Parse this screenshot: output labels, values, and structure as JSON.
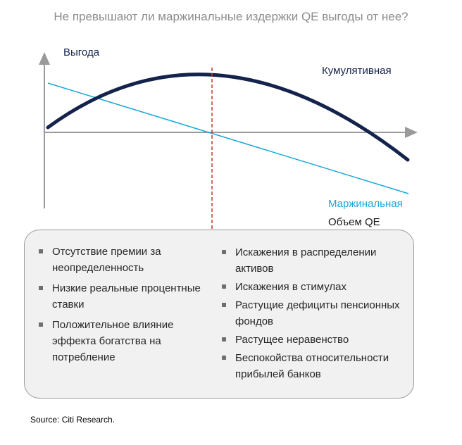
{
  "title": "Не превышают ли маржинальные издержки QE выгоды от нее?",
  "axis_labels": {
    "y": "Выгода",
    "x": "Объем QE"
  },
  "curves": {
    "cumulative": {
      "label": "Кумулятивная",
      "color": "#14234b"
    },
    "marginal": {
      "label": "Маржинальная",
      "color": "#1aa7d8"
    }
  },
  "divider_color": "#c0392b",
  "benefits": [
    "Отсутствие премии за неопределенность",
    "Низкие реальные процентные ставки",
    "Положительное влияние эффекта богатства на потребление"
  ],
  "costs": [
    "Искажения в распределении активов",
    "Искажения в стимулах",
    "Растущие дефициты пенсионных фондов",
    "Растущее неравенство",
    "Беспокойства относительности прибылей банков"
  ],
  "source": "Source: Citi Research."
}
